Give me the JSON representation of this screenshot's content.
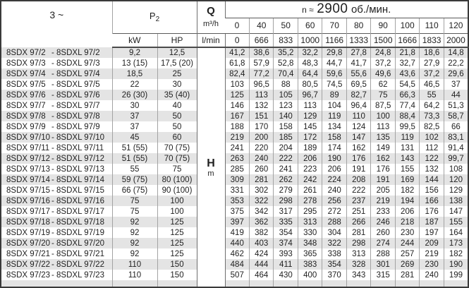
{
  "colors": {
    "stripe": "#e4e4e4",
    "outer_border": "#3a3a3a",
    "grid_line": "#a3a3a3",
    "header_line": "#4a4a4a",
    "text": "#1f1f1f"
  },
  "header": {
    "phase": "3 ~",
    "p2_base": "P",
    "p2_sub": "2",
    "q_label": "Q",
    "m3h_label": "m³/h",
    "lmin_label": "l/min",
    "kw_label": "kW",
    "hp_label": "HP",
    "speed_prefix": "n ≈",
    "speed_value": "2900",
    "speed_suffix": "об./мин.",
    "flow_m3h": [
      "0",
      "40",
      "50",
      "60",
      "70",
      "80",
      "90",
      "100",
      "110",
      "120"
    ],
    "flow_lmin": [
      "0",
      "666",
      "833",
      "1000",
      "1166",
      "1333",
      "1500",
      "1666",
      "1833",
      "2000"
    ]
  },
  "h_column": {
    "label": "H",
    "unit": "m"
  },
  "rows": [
    {
      "model_a": "8SDX 97/2",
      "model_b": "8SDXL 97/2",
      "kw": "9,2",
      "hp": "12,5",
      "h": [
        "41,2",
        "38,6",
        "35,2",
        "32,2",
        "29,8",
        "27,8",
        "24,8",
        "21,8",
        "18,6",
        "14,8"
      ]
    },
    {
      "model_a": "8SDX 97/3",
      "model_b": "8SDXL 97/3",
      "kw": "13 (15)",
      "hp": "17,5 (20)",
      "h": [
        "61,8",
        "57,9",
        "52,8",
        "48,3",
        "44,7",
        "41,7",
        "37,2",
        "32,7",
        "27,9",
        "22,2"
      ]
    },
    {
      "model_a": "8SDX 97/4",
      "model_b": "8SDXL 97/4",
      "kw": "18,5",
      "hp": "25",
      "h": [
        "82,4",
        "77,2",
        "70,4",
        "64,4",
        "59,6",
        "55,6",
        "49,6",
        "43,6",
        "37,2",
        "29,6"
      ]
    },
    {
      "model_a": "8SDX 97/5",
      "model_b": "8SDXL 97/5",
      "kw": "22",
      "hp": "30",
      "h": [
        "103",
        "96,5",
        "88",
        "80,5",
        "74,5",
        "69,5",
        "62",
        "54,5",
        "46,5",
        "37"
      ]
    },
    {
      "model_a": "8SDX 97/6",
      "model_b": "8SDXL 97/6",
      "kw": "26 (30)",
      "hp": "35 (40)",
      "h": [
        "125",
        "113",
        "105",
        "96,7",
        "89",
        "82,7",
        "75",
        "66,3",
        "55",
        "44"
      ]
    },
    {
      "model_a": "8SDX 97/7",
      "model_b": "8SDXL 97/7",
      "kw": "30",
      "hp": "40",
      "h": [
        "146",
        "132",
        "123",
        "113",
        "104",
        "96,4",
        "87,5",
        "77,4",
        "64,2",
        "51,3"
      ]
    },
    {
      "model_a": "8SDX 97/8",
      "model_b": "8SDXL 97/8",
      "kw": "37",
      "hp": "50",
      "h": [
        "167",
        "151",
        "140",
        "129",
        "119",
        "110",
        "100",
        "88,4",
        "73,3",
        "58,7"
      ]
    },
    {
      "model_a": "8SDX 97/9",
      "model_b": "8SDXL 97/9",
      "kw": "37",
      "hp": "50",
      "h": [
        "188",
        "170",
        "158",
        "145",
        "134",
        "124",
        "113",
        "99,5",
        "82,5",
        "66"
      ]
    },
    {
      "model_a": "8SDX 97/10",
      "model_b": "8SDXL 97/10",
      "kw": "45",
      "hp": "60",
      "h": [
        "219",
        "200",
        "185",
        "172",
        "158",
        "147",
        "135",
        "119",
        "102",
        "83,1"
      ]
    },
    {
      "model_a": "8SDX 97/11",
      "model_b": "8SDXL 97/11",
      "kw": "51 (55)",
      "hp": "70 (75)",
      "h": [
        "241",
        "220",
        "204",
        "189",
        "174",
        "162",
        "149",
        "131",
        "112",
        "91,4"
      ]
    },
    {
      "model_a": "8SDX 97/12",
      "model_b": "8SDXL 97/12",
      "kw": "51 (55)",
      "hp": "70 (75)",
      "h": [
        "263",
        "240",
        "222",
        "206",
        "190",
        "176",
        "162",
        "143",
        "122",
        "99,7"
      ]
    },
    {
      "model_a": "8SDX 97/13",
      "model_b": "8SDXL 97/13",
      "kw": "55",
      "hp": "75",
      "h": [
        "285",
        "260",
        "241",
        "223",
        "206",
        "191",
        "176",
        "155",
        "132",
        "108"
      ]
    },
    {
      "model_a": "8SDX 97/14",
      "model_b": "8SDXL 97/14",
      "kw": "59 (75)",
      "hp": "80 (100)",
      "h": [
        "309",
        "281",
        "262",
        "242",
        "224",
        "208",
        "191",
        "169",
        "144",
        "120"
      ]
    },
    {
      "model_a": "8SDX 97/15",
      "model_b": "8SDXL 97/15",
      "kw": "66 (75)",
      "hp": "90 (100)",
      "h": [
        "331",
        "302",
        "279",
        "261",
        "240",
        "222",
        "205",
        "182",
        "156",
        "129"
      ]
    },
    {
      "model_a": "8SDX 97/16",
      "model_b": "8SDXL 97/16",
      "kw": "75",
      "hp": "100",
      "h": [
        "353",
        "322",
        "298",
        "278",
        "256",
        "237",
        "219",
        "194",
        "166",
        "138"
      ]
    },
    {
      "model_a": "8SDX 97/17",
      "model_b": "8SDXL 97/17",
      "kw": "75",
      "hp": "100",
      "h": [
        "375",
        "342",
        "317",
        "295",
        "272",
        "251",
        "233",
        "206",
        "176",
        "147"
      ]
    },
    {
      "model_a": "8SDX 97/18",
      "model_b": "8SDXL 97/18",
      "kw": "92",
      "hp": "125",
      "h": [
        "397",
        "362",
        "335",
        "313",
        "288",
        "266",
        "246",
        "218",
        "187",
        "155"
      ]
    },
    {
      "model_a": "8SDX 97/19",
      "model_b": "8SDXL 97/19",
      "kw": "92",
      "hp": "125",
      "h": [
        "419",
        "382",
        "354",
        "330",
        "304",
        "281",
        "260",
        "230",
        "197",
        "164"
      ]
    },
    {
      "model_a": "8SDX 97/20",
      "model_b": "8SDXL 97/20",
      "kw": "92",
      "hp": "125",
      "h": [
        "440",
        "403",
        "374",
        "348",
        "322",
        "298",
        "274",
        "244",
        "209",
        "173"
      ]
    },
    {
      "model_a": "8SDX 97/21",
      "model_b": "8SDXL 97/21",
      "kw": "92",
      "hp": "125",
      "h": [
        "462",
        "424",
        "393",
        "365",
        "338",
        "313",
        "288",
        "257",
        "219",
        "182"
      ]
    },
    {
      "model_a": "8SDX 97/22",
      "model_b": "8SDXL 97/22",
      "kw": "110",
      "hp": "150",
      "h": [
        "484",
        "444",
        "411",
        "383",
        "354",
        "328",
        "301",
        "269",
        "230",
        "190"
      ]
    },
    {
      "model_a": "8SDX 97/23",
      "model_b": "8SDXL 97/23",
      "kw": "110",
      "hp": "150",
      "h": [
        "507",
        "464",
        "430",
        "400",
        "370",
        "343",
        "315",
        "281",
        "240",
        "199"
      ]
    }
  ]
}
